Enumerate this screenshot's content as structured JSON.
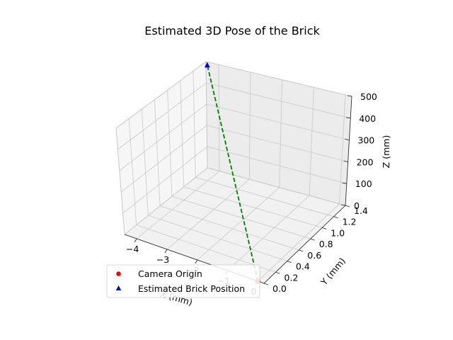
{
  "chart_data": {
    "type": "scatter",
    "title": "Estimated 3D Pose of the Brick",
    "xlabel": "X (mm)",
    "ylabel": "Y (mm)",
    "zlabel": "Z (mm)",
    "xlim": [
      -4.4,
      0.2
    ],
    "ylim": [
      0,
      1.4
    ],
    "zlim": [
      0,
      500
    ],
    "xticks": [
      -4,
      -3,
      -2,
      -1,
      0
    ],
    "yticks": [
      0.0,
      0.2,
      0.4,
      0.6,
      0.8,
      1.0,
      1.2,
      1.4
    ],
    "ytick_labels": [
      "0.0",
      "0.2",
      "0.4",
      "0.6",
      "0.8",
      "1.0",
      "1.2",
      "1.4"
    ],
    "zticks": [
      0,
      100,
      200,
      300,
      400,
      500
    ],
    "grid": true,
    "legend_position": "lower-left",
    "series": [
      {
        "name": "Camera Origin",
        "marker": "circle",
        "color": "#ff0000",
        "points": [
          {
            "x": 0,
            "y": 0,
            "z": 0
          }
        ]
      },
      {
        "name": "Estimated Brick Position",
        "marker": "triangle",
        "color": "#0000ff",
        "points": [
          {
            "x": -4.3,
            "y": 1.37,
            "z": 495
          }
        ]
      }
    ],
    "connector": {
      "style": "dashed",
      "color": "#008000",
      "from": {
        "x": 0,
        "y": 0,
        "z": 0
      },
      "to": {
        "x": -4.3,
        "y": 1.37,
        "z": 495
      }
    }
  }
}
